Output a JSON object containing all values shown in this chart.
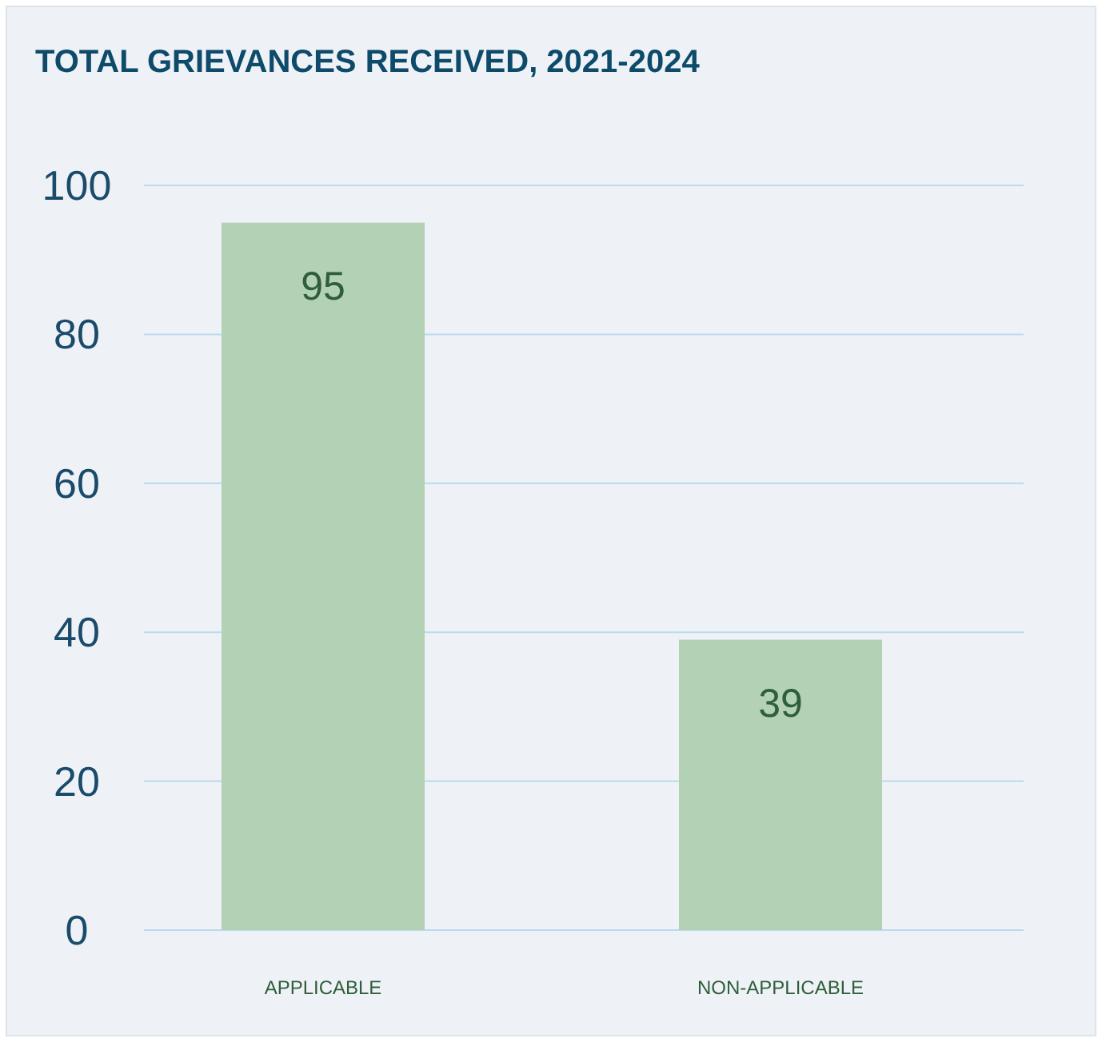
{
  "chart_data": {
    "type": "bar",
    "title": "TOTAL GRIEVANCES RECEIVED, 2021-2024",
    "categories": [
      "APPLICABLE",
      "NON-APPLICABLE"
    ],
    "values": [
      95,
      39
    ],
    "color": "#b3d1b4",
    "ylim": [
      0,
      100
    ],
    "yticks": [
      0,
      20,
      40,
      60,
      80,
      100
    ],
    "grid": "y",
    "data_labels": true
  }
}
